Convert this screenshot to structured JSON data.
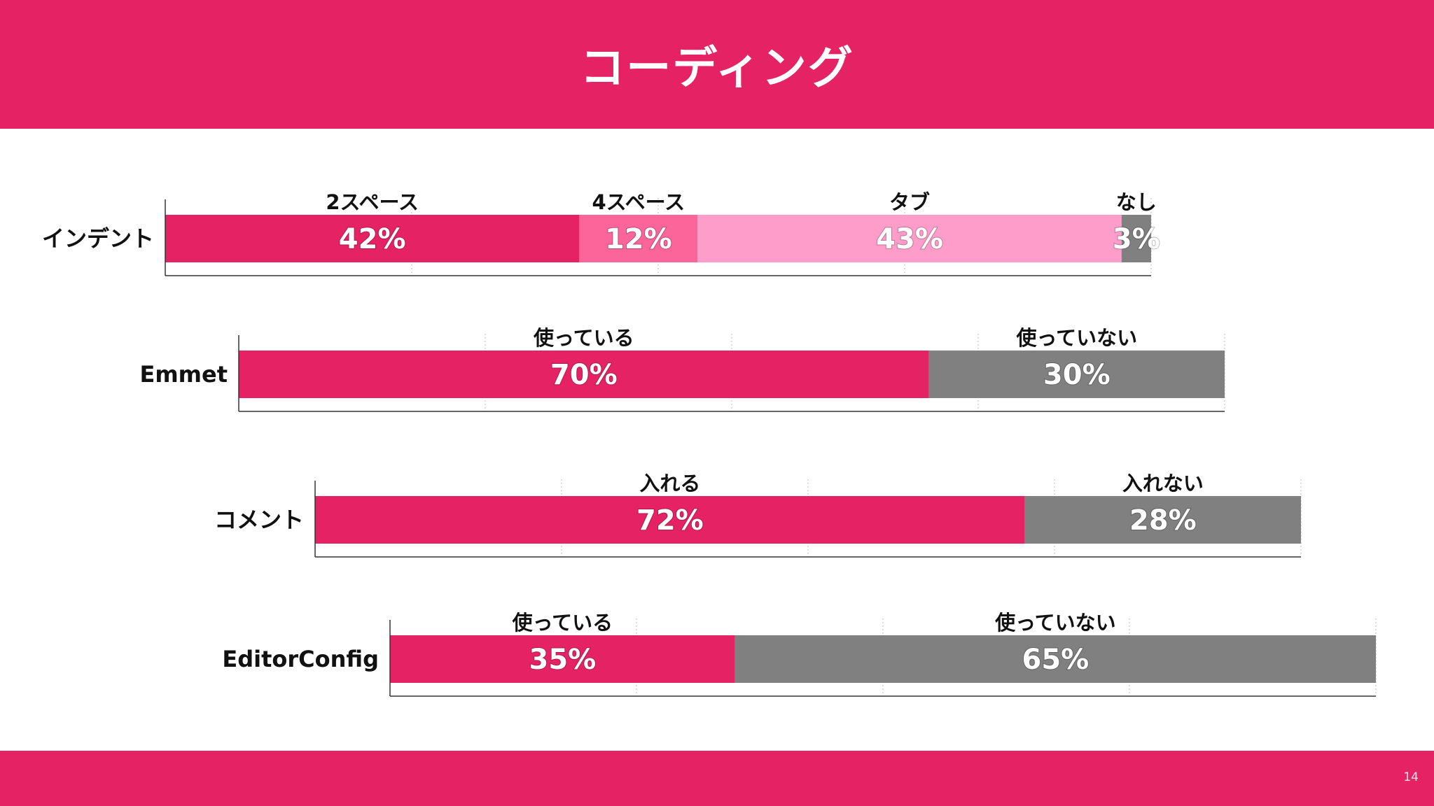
{
  "title": "コーディング",
  "page_number": "14",
  "colors": {
    "header": "#e52364",
    "primary": "#e52364",
    "secondary": "#fc6599",
    "tertiary": "#fe9dc9",
    "gray": "#808080"
  },
  "chart_data": {
    "type": "bar",
    "orientation": "horizontal",
    "stacked": true,
    "unit": "%",
    "xlim": [
      0,
      100
    ],
    "grid": true,
    "rows": [
      {
        "label": "インデント",
        "segments": [
          {
            "name": "2スペース",
            "value": 42,
            "label": "42%",
            "color": "#e52364"
          },
          {
            "name": "4スペース",
            "value": 12,
            "label": "12%",
            "color": "#fc6599"
          },
          {
            "name": "タブ",
            "value": 43,
            "label": "43%",
            "color": "#fe9dc9"
          },
          {
            "name": "なし",
            "value": 3,
            "label": "3%",
            "color": "#808080"
          }
        ]
      },
      {
        "label": "Emmet",
        "segments": [
          {
            "name": "使っている",
            "value": 70,
            "label": "70%",
            "color": "#e52364"
          },
          {
            "name": "使っていない",
            "value": 30,
            "label": "30%",
            "color": "#808080"
          }
        ]
      },
      {
        "label": "コメント",
        "segments": [
          {
            "name": "入れる",
            "value": 72,
            "label": "72%",
            "color": "#e52364"
          },
          {
            "name": "入れない",
            "value": 28,
            "label": "28%",
            "color": "#808080"
          }
        ]
      },
      {
        "label": "EditorConfig",
        "segments": [
          {
            "name": "使っている",
            "value": 35,
            "label": "35%",
            "color": "#e52364"
          },
          {
            "name": "使っていない",
            "value": 65,
            "label": "65%",
            "color": "#808080"
          }
        ]
      }
    ]
  }
}
